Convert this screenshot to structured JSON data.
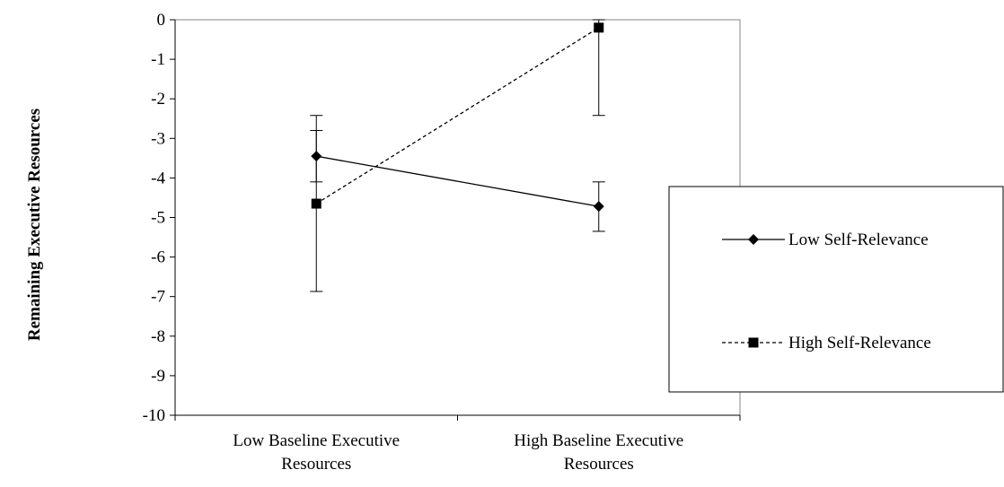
{
  "chart_data": {
    "type": "line",
    "title": "",
    "xlabel": "",
    "ylabel": "Remaining Executive Resources",
    "ylim": [
      -10,
      0
    ],
    "yticks": [
      0,
      -1,
      -2,
      -3,
      -4,
      -5,
      -6,
      -7,
      -8,
      -9,
      -10
    ],
    "categories": [
      [
        "Low Baseline Executive",
        "Resources"
      ],
      [
        "High Baseline Executive",
        "Resources"
      ]
    ],
    "series": [
      {
        "name": "Low Self-Relevance",
        "marker": "diamond",
        "line_style": "solid",
        "values": [
          -3.45,
          -4.72
        ],
        "error_low": [
          -4.1,
          -5.35
        ],
        "error_high": [
          -2.8,
          -4.1
        ]
      },
      {
        "name": "High Self-Relevance",
        "marker": "square",
        "line_style": "dashed",
        "values": [
          -4.65,
          -0.2
        ],
        "error_low": [
          -6.87,
          -2.42
        ],
        "error_high": [
          -2.42,
          0
        ]
      }
    ],
    "legend_position": "right",
    "grid": false,
    "colors": {
      "line": "#000000",
      "background": "#ffffff"
    }
  }
}
